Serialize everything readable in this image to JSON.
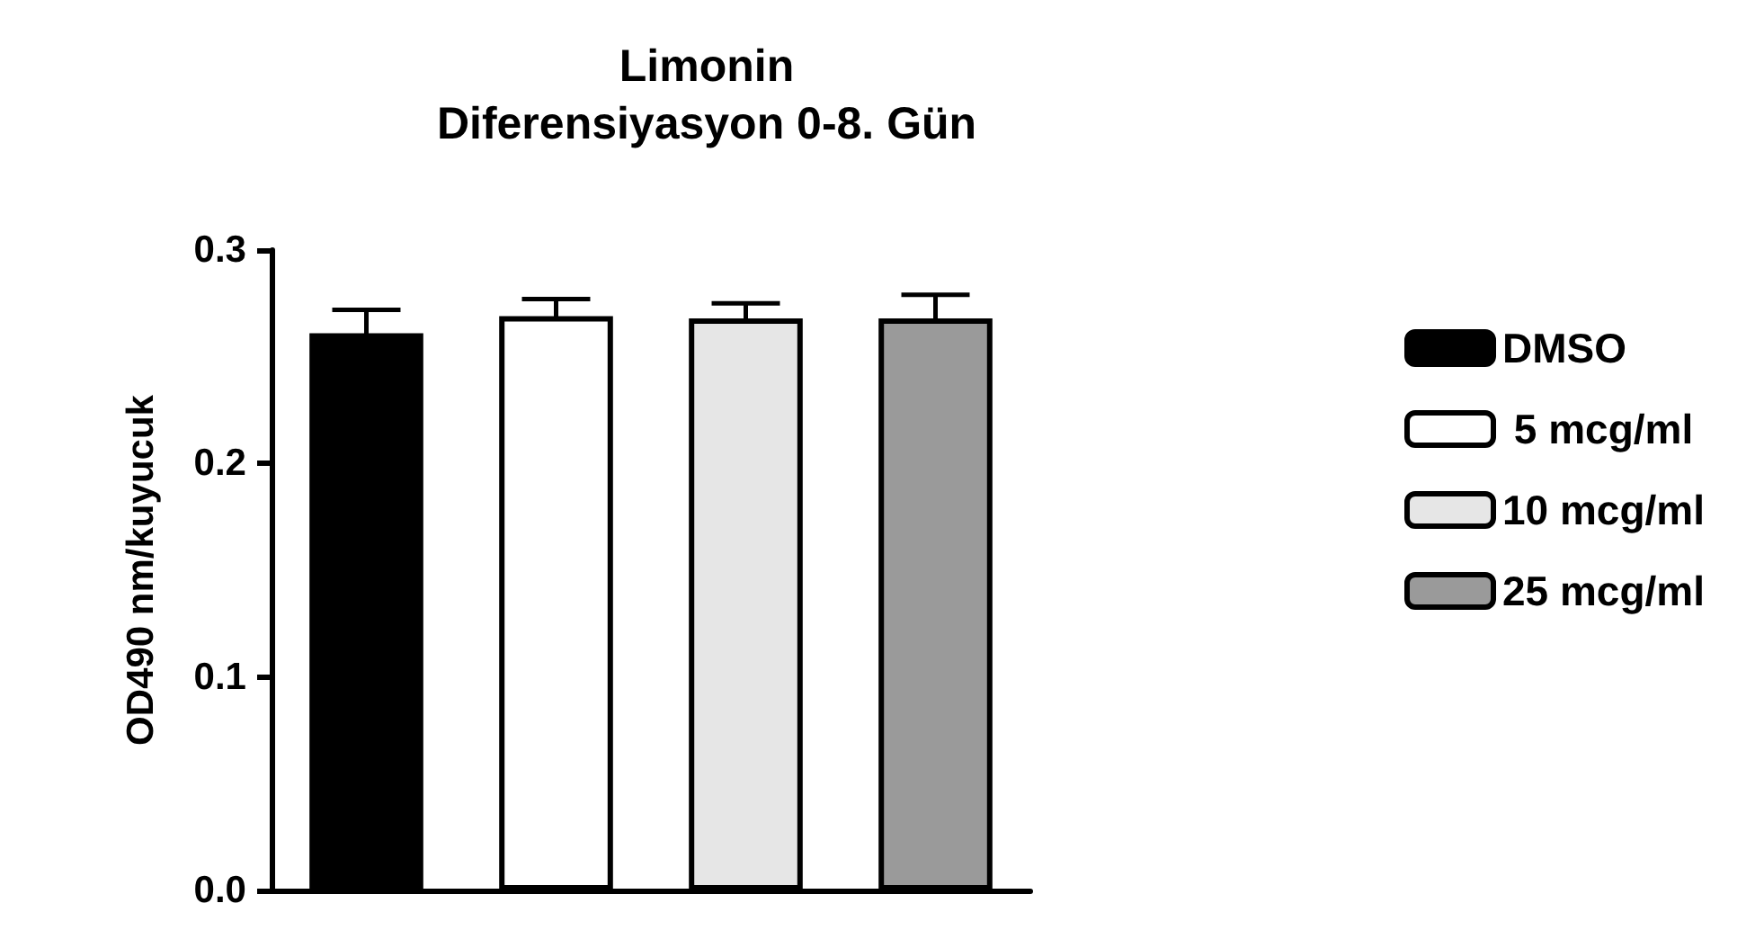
{
  "chart_data": {
    "type": "bar",
    "title": "Limonin\nDiferensiyasyon 0-8. Gün",
    "ylabel": "OD490 nm/kuyucuk",
    "categories": [
      null,
      null,
      null,
      null
    ],
    "series": [
      {
        "name": "DMSO",
        "color": "#000000",
        "values": [
          0.261,
          null,
          null,
          null
        ],
        "errors": [
          0.011,
          null,
          null,
          null
        ]
      },
      {
        "name": " 5 mcg/ml",
        "color": "#ffffff",
        "values": [
          null,
          0.269,
          null,
          null
        ],
        "errors": [
          null,
          0.008,
          null,
          null
        ]
      },
      {
        "name": "10 mcg/ml",
        "color": "#e6e6e6",
        "values": [
          null,
          null,
          0.268,
          null
        ],
        "errors": [
          null,
          null,
          0.007,
          null
        ]
      },
      {
        "name": "25 mcg/ml",
        "color": "#9a9a9a",
        "values": [
          null,
          null,
          null,
          0.268
        ],
        "errors": [
          null,
          null,
          null,
          0.011
        ]
      }
    ],
    "ylim": [
      0,
      0.3
    ],
    "yticks": [
      {
        "value": 0,
        "label": "0.0"
      },
      0.1,
      0.2,
      0.3
    ],
    "grid": false,
    "legend": "right"
  }
}
